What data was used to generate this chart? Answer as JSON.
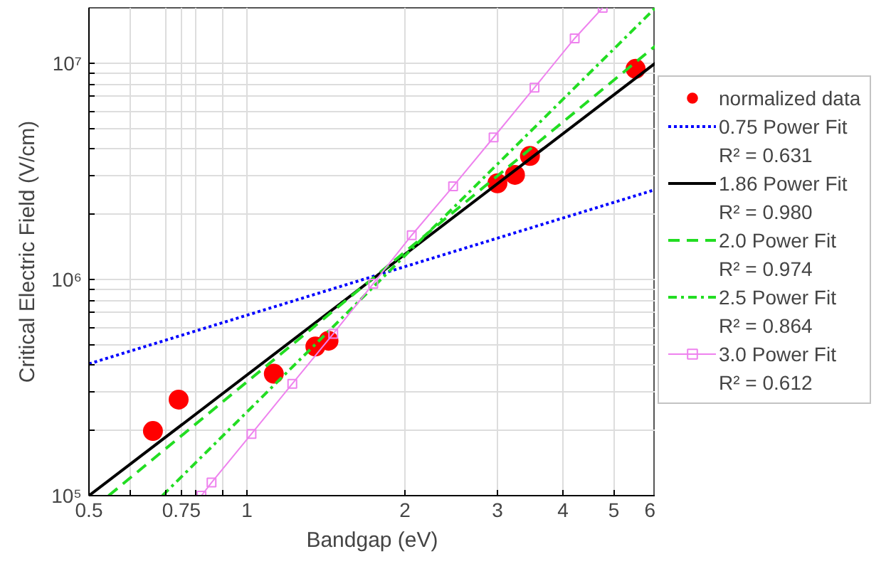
{
  "chart_data": {
    "type": "line",
    "xlabel": "Bandgap (eV)",
    "ylabel": "Critical Electric Field (V/cm)",
    "log": "xy",
    "grid": true,
    "legend": "right",
    "xlim": [
      0.5,
      6
    ],
    "ylim": [
      100000,
      18000000
    ],
    "xticks": [
      {
        "value": 0.5,
        "label": "0.5"
      },
      {
        "value": 0.6,
        "label": null
      },
      {
        "value": 0.7,
        "label": null
      },
      {
        "value": 0.75,
        "label": "0.75"
      },
      {
        "value": 0.8,
        "label": null
      },
      {
        "value": 0.9,
        "label": null
      },
      1,
      2,
      3,
      4,
      5,
      6
    ],
    "yticks": [
      {
        "value": 100000,
        "label": "10⁵"
      },
      {
        "value": 200000,
        "label": null
      },
      {
        "value": 300000,
        "label": null
      },
      {
        "value": 400000,
        "label": null
      },
      {
        "value": 500000,
        "label": null
      },
      {
        "value": 600000,
        "label": null
      },
      {
        "value": 700000,
        "label": null
      },
      {
        "value": 800000,
        "label": null
      },
      {
        "value": 900000,
        "label": null
      },
      {
        "value": 1000000,
        "label": "10⁶"
      },
      {
        "value": 2000000,
        "label": null
      },
      {
        "value": 3000000,
        "label": null
      },
      {
        "value": 4000000,
        "label": null
      },
      {
        "value": 5000000,
        "label": null
      },
      {
        "value": 6000000,
        "label": null
      },
      {
        "value": 7000000,
        "label": null
      },
      {
        "value": 8000000,
        "label": null
      },
      {
        "value": 9000000,
        "label": null
      },
      {
        "value": 10000000,
        "label": "10⁷"
      }
    ],
    "series": [
      {
        "name": "normalized data",
        "type": "scatter",
        "marker": "circle",
        "color": "#ff0000",
        "x": [
          0.662,
          0.741,
          1.125,
          1.35,
          1.43,
          3.0,
          3.24,
          3.46,
          5.5
        ],
        "values": [
          199000,
          278000,
          366000,
          489000,
          520000,
          2780000,
          3040000,
          3720000,
          9400000
        ]
      },
      {
        "name": "0.75 Power Fit\nR² = 0.631",
        "marker": "none",
        "line_style": "dotted",
        "color": "#0000ff",
        "x": [
          0.5,
          6
        ],
        "values": [
          407000,
          2600000
        ]
      },
      {
        "name": "1.86 Power Fit\nR² = 0.980",
        "marker": "none",
        "line_style": "solid",
        "color": "#000000",
        "x": [
          0.5,
          6
        ],
        "values": [
          100000,
          10000000
        ]
      },
      {
        "name": "2.0 Power Fit\nR² = 0.974",
        "marker": "none",
        "line_style": "dashed",
        "color": "#22dd22",
        "x": [
          0.545,
          6
        ],
        "values": [
          100000,
          12000000
        ]
      },
      {
        "name": "2.5 Power Fit\nR² = 0.864",
        "marker": "none",
        "line_style": "dashdot",
        "color": "#22dd22",
        "x": [
          0.69,
          6
        ],
        "values": [
          100000,
          18000000
        ]
      },
      {
        "name": "3.0 Power Fit\nR² = 0.612",
        "marker": "square",
        "line_style": "solid",
        "color": "#ee82ee",
        "x": [
          0.819,
          0.856,
          1.02,
          1.22,
          1.46,
          1.74,
          2.06,
          2.47,
          2.95,
          3.53,
          4.21,
          4.76
        ],
        "values": [
          100000,
          115000,
          193000,
          329000,
          560000,
          955000,
          1600000,
          2690000,
          4530000,
          7700000,
          13000000,
          18000000
        ]
      }
    ]
  }
}
